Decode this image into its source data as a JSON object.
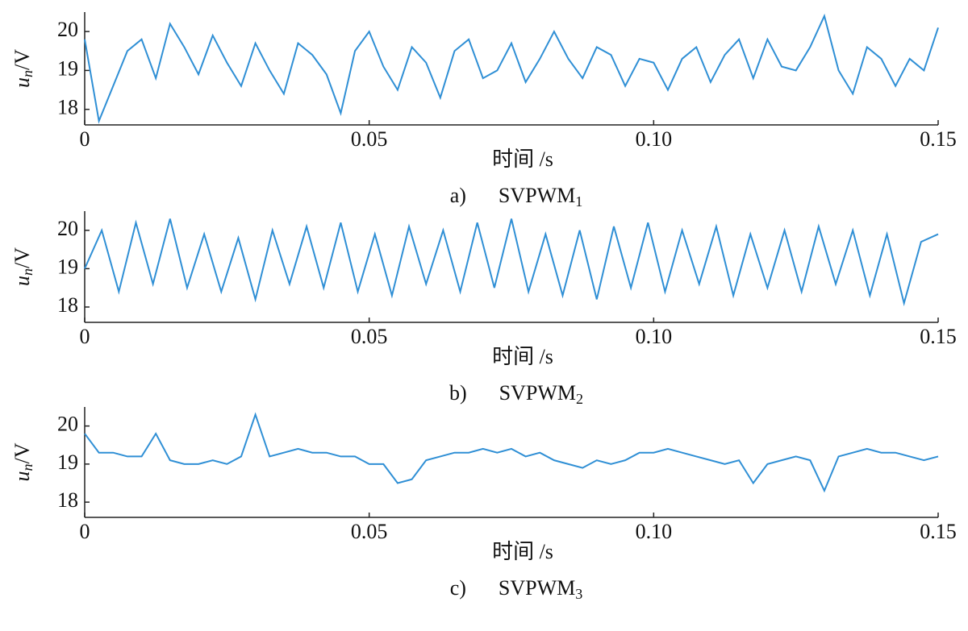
{
  "chart_data": [
    {
      "type": "line",
      "panel_label": "a)",
      "title": "SVPWM",
      "title_sub": "1",
      "xlabel": "时间 /s",
      "ylabel": "u",
      "ylabel_sub": "n",
      "ylabel_unit": "/V",
      "color": "#2f8fd5",
      "xlim": [
        0,
        0.15
      ],
      "ylim": [
        17.6,
        20.5
      ],
      "yticks": [
        18,
        19,
        20
      ],
      "xticks": [
        0,
        0.05,
        {
          "value": 0.1,
          "label": "0.10"
        },
        0.15
      ],
      "x": [
        0,
        0.0025,
        0.005,
        0.0075,
        0.01,
        0.0125,
        0.015,
        0.0175,
        0.02,
        0.0225,
        0.025,
        0.0275,
        0.03,
        0.0325,
        0.035,
        0.0375,
        0.04,
        0.0425,
        0.045,
        0.0475,
        0.05,
        0.0525,
        0.055,
        0.0575,
        0.06,
        0.0625,
        0.065,
        0.0675,
        0.07,
        0.0725,
        0.075,
        0.0775,
        0.08,
        0.0825,
        0.085,
        0.0875,
        0.09,
        0.0925,
        0.095,
        0.0975,
        0.1,
        0.1025,
        0.105,
        0.1075,
        0.11,
        0.1125,
        0.115,
        0.1175,
        0.12,
        0.1225,
        0.125,
        0.1275,
        0.13,
        0.1325,
        0.135,
        0.1375,
        0.14,
        0.1425,
        0.145,
        0.1475,
        0.15
      ],
      "series": [
        {
          "values": [
            19.8,
            17.7,
            18.6,
            19.5,
            19.8,
            18.8,
            20.2,
            19.6,
            18.9,
            19.9,
            19.2,
            18.6,
            19.7,
            19.0,
            18.4,
            19.7,
            19.4,
            18.9,
            17.9,
            19.5,
            20.0,
            19.1,
            18.5,
            19.6,
            19.2,
            18.3,
            19.5,
            19.8,
            18.8,
            19.0,
            19.7,
            18.7,
            19.3,
            20.0,
            19.3,
            18.8,
            19.6,
            19.4,
            18.6,
            19.3,
            19.2,
            18.5,
            19.3,
            19.6,
            18.7,
            19.4,
            19.8,
            18.8,
            19.8,
            19.1,
            19.0,
            19.6,
            20.4,
            19.0,
            18.4,
            19.6,
            19.3,
            18.6,
            19.3,
            19.0,
            20.1
          ]
        }
      ]
    },
    {
      "type": "line",
      "panel_label": "b)",
      "title": "SVPWM",
      "title_sub": "2",
      "xlabel": "时间 /s",
      "ylabel": "u",
      "ylabel_sub": "n",
      "ylabel_unit": "/V",
      "color": "#2f8fd5",
      "xlim": [
        0,
        0.15
      ],
      "ylim": [
        17.6,
        20.5
      ],
      "yticks": [
        18,
        19,
        20
      ],
      "xticks": [
        0,
        0.05,
        {
          "value": 0.1,
          "label": "0.10"
        },
        0.15
      ],
      "x": [
        0,
        0.003,
        0.006,
        0.009,
        0.012,
        0.015,
        0.018,
        0.021,
        0.024,
        0.027,
        0.03,
        0.033,
        0.036,
        0.039,
        0.042,
        0.045,
        0.048,
        0.051,
        0.054,
        0.057,
        0.06,
        0.063,
        0.066,
        0.069,
        0.072,
        0.075,
        0.078,
        0.081,
        0.084,
        0.087,
        0.09,
        0.093,
        0.096,
        0.099,
        0.102,
        0.105,
        0.108,
        0.111,
        0.114,
        0.117,
        0.12,
        0.123,
        0.126,
        0.129,
        0.132,
        0.135,
        0.138,
        0.141,
        0.144,
        0.147,
        0.15
      ],
      "series": [
        {
          "values": [
            19.0,
            20.0,
            18.4,
            20.2,
            18.6,
            20.3,
            18.5,
            19.9,
            18.4,
            19.8,
            18.2,
            20.0,
            18.6,
            20.1,
            18.5,
            20.2,
            18.4,
            19.9,
            18.3,
            20.1,
            18.6,
            20.0,
            18.4,
            20.2,
            18.5,
            20.3,
            18.4,
            19.9,
            18.3,
            20.0,
            18.2,
            20.1,
            18.5,
            20.2,
            18.4,
            20.0,
            18.6,
            20.1,
            18.3,
            19.9,
            18.5,
            20.0,
            18.4,
            20.1,
            18.6,
            20.0,
            18.3,
            19.9,
            18.1,
            19.7,
            19.9
          ]
        }
      ]
    },
    {
      "type": "line",
      "panel_label": "c)",
      "title": "SVPWM",
      "title_sub": "3",
      "xlabel": "时间 /s",
      "ylabel": "u",
      "ylabel_sub": "n",
      "ylabel_unit": "/V",
      "color": "#2f8fd5",
      "xlim": [
        0,
        0.15
      ],
      "ylim": [
        17.6,
        20.5
      ],
      "yticks": [
        18,
        19,
        20
      ],
      "xticks": [
        0,
        0.05,
        {
          "value": 0.1,
          "label": "0.10"
        },
        0.15
      ],
      "x": [
        0,
        0.0025,
        0.005,
        0.0075,
        0.01,
        0.0125,
        0.015,
        0.0175,
        0.02,
        0.0225,
        0.025,
        0.0275,
        0.03,
        0.0325,
        0.035,
        0.0375,
        0.04,
        0.0425,
        0.045,
        0.0475,
        0.05,
        0.0525,
        0.055,
        0.0575,
        0.06,
        0.0625,
        0.065,
        0.0675,
        0.07,
        0.0725,
        0.075,
        0.0775,
        0.08,
        0.0825,
        0.085,
        0.0875,
        0.09,
        0.0925,
        0.095,
        0.0975,
        0.1,
        0.1025,
        0.105,
        0.1075,
        0.11,
        0.1125,
        0.115,
        0.1175,
        0.12,
        0.1225,
        0.125,
        0.1275,
        0.13,
        0.1325,
        0.135,
        0.1375,
        0.14,
        0.1425,
        0.145,
        0.1475,
        0.15
      ],
      "series": [
        {
          "values": [
            19.8,
            19.3,
            19.3,
            19.2,
            19.2,
            19.8,
            19.1,
            19.0,
            19.0,
            19.1,
            19.0,
            19.2,
            20.3,
            19.2,
            19.3,
            19.4,
            19.3,
            19.3,
            19.2,
            19.2,
            19.0,
            19.0,
            18.5,
            18.6,
            19.1,
            19.2,
            19.3,
            19.3,
            19.4,
            19.3,
            19.4,
            19.2,
            19.3,
            19.1,
            19.0,
            18.9,
            19.1,
            19.0,
            19.1,
            19.3,
            19.3,
            19.4,
            19.3,
            19.2,
            19.1,
            19.0,
            19.1,
            18.5,
            19.0,
            19.1,
            19.2,
            19.1,
            18.3,
            19.2,
            19.3,
            19.4,
            19.3,
            19.3,
            19.2,
            19.1,
            19.2
          ]
        }
      ]
    }
  ]
}
